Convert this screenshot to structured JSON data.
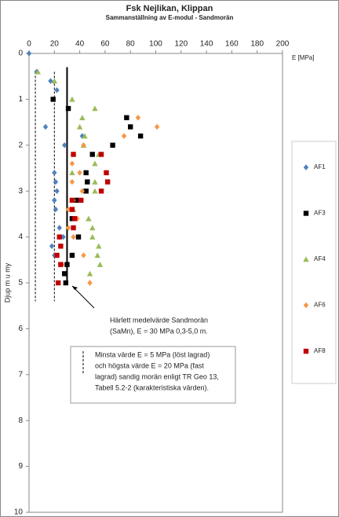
{
  "chart_data": {
    "type": "scatter",
    "title": "Fsk Nejlikan, Klippan",
    "subtitle": "Sammanställning av E-modul - Sandmorän",
    "x_label": "E [MPa]",
    "y_label": "Djup m u my",
    "xlim": [
      0,
      200
    ],
    "xticks": [
      0,
      20,
      40,
      60,
      80,
      100,
      120,
      140,
      160,
      180,
      200
    ],
    "ylim": [
      0,
      10
    ],
    "yticks": [
      0,
      1,
      2,
      3,
      4,
      5,
      6,
      7,
      8,
      9,
      10
    ],
    "y_inverted": true,
    "x_axis_position": "top",
    "grid": false,
    "legend_position": "right",
    "series": [
      {
        "name": "AF1",
        "color": "#4f81bd",
        "marker": "diamond",
        "x": [
          0,
          6,
          17,
          22,
          42,
          13,
          28,
          20,
          21,
          22,
          20,
          21,
          24,
          27,
          18,
          20
        ],
        "y": [
          0,
          0.4,
          0.6,
          0.8,
          1.8,
          1.6,
          2.0,
          2.6,
          2.8,
          3.0,
          3.2,
          3.4,
          3.8,
          4.0,
          4.2,
          4.4
        ]
      },
      {
        "name": "AF3",
        "color": "#000000",
        "marker": "square",
        "x": [
          19,
          31,
          77,
          80,
          88,
          66,
          50,
          45,
          46,
          45,
          38,
          34,
          39,
          34,
          30,
          28,
          29
        ],
        "y": [
          1.0,
          1.2,
          1.4,
          1.6,
          1.8,
          2.0,
          2.2,
          2.6,
          2.8,
          3.0,
          3.2,
          3.6,
          4.0,
          4.4,
          4.6,
          4.8,
          5.0
        ]
      },
      {
        "name": "AF4",
        "color": "#9bbb59",
        "marker": "triangle",
        "x": [
          7,
          20,
          34,
          52,
          42,
          40,
          44,
          43,
          55,
          52,
          34,
          52,
          52,
          35,
          47,
          50,
          50,
          55,
          54,
          56,
          48
        ],
        "y": [
          0.4,
          0.6,
          1.0,
          1.2,
          1.4,
          1.6,
          1.8,
          2.0,
          2.2,
          2.4,
          2.6,
          2.8,
          3.0,
          3.4,
          3.6,
          3.8,
          4.0,
          4.2,
          4.4,
          4.6,
          4.8
        ]
      },
      {
        "name": "AF6",
        "color": "#f79646",
        "marker": "diamond",
        "x": [
          86,
          101,
          75,
          43,
          35,
          34,
          40,
          34,
          42,
          35,
          31,
          38,
          31,
          35,
          43,
          26,
          48
        ],
        "y": [
          1.4,
          1.6,
          1.8,
          2.0,
          2.2,
          2.4,
          2.6,
          2.8,
          3.0,
          3.2,
          3.4,
          3.6,
          3.8,
          4.0,
          4.4,
          4.6,
          5.0
        ]
      },
      {
        "name": "AF8",
        "color": "#c00000",
        "marker": "square",
        "x": [
          35,
          57,
          61,
          62,
          57,
          34,
          41,
          34,
          36,
          35,
          24,
          25,
          22,
          25,
          23
        ],
        "y": [
          2.2,
          2.2,
          2.6,
          2.8,
          3.0,
          3.2,
          3.2,
          3.4,
          3.6,
          3.8,
          4.0,
          4.2,
          4.4,
          4.6,
          5.0
        ]
      }
    ],
    "reference_lines": [
      {
        "x": 5,
        "y": [
          0.4,
          5.4
        ],
        "style": "dashed"
      },
      {
        "x": 20,
        "y": [
          0.4,
          5.4
        ],
        "style": "dashed"
      },
      {
        "x": 30,
        "y": [
          0.3,
          5.0
        ],
        "style": "solid"
      }
    ],
    "annotations": [
      {
        "lines": [
          "Härlett medelvärde Sandmorän",
          "(SaMn),  E =  30 MPa 0,3-5,0 m."
        ]
      },
      {
        "lines": [
          "Minsta värde E = 5 MPa (löst lagrad)",
          "och högsta värde E = 20 MPa (fast",
          "lagrad) sandig morän enligt TR Geo 13,",
          "Tabell 5.2-2 (karakteristiska värden)."
        ]
      }
    ]
  }
}
